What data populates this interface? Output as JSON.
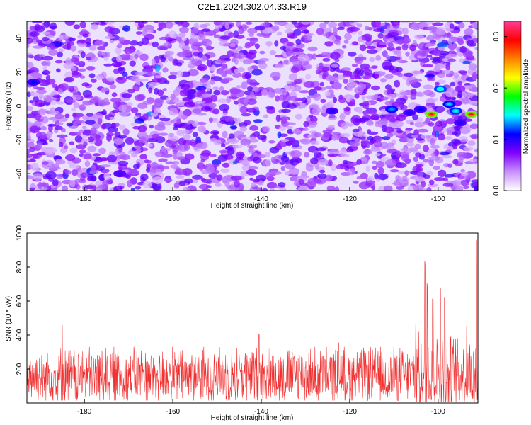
{
  "title": "C2E1.2024.302.04.33.R19",
  "chart_data": [
    {
      "type": "heatmap",
      "title": "C2E1.2024.302.04.33.R19",
      "xlabel": "Height of straight line (km)",
      "ylabel": "Frequency (Hz)",
      "xlim": [
        -193,
        -91
      ],
      "ylim": [
        -50,
        50
      ],
      "x_ticks": [
        -180,
        -160,
        -140,
        -120,
        -100
      ],
      "y_ticks": [
        -40,
        -20,
        0,
        20,
        40
      ],
      "colorbar": {
        "label": "Normalized spectral amplitude",
        "range": [
          0,
          0.33
        ],
        "ticks": [
          0.0,
          0.1,
          0.2,
          0.3
        ],
        "colors": [
          "#ffffff",
          "#c890ff",
          "#8000ff",
          "#0000ff",
          "#00ffff",
          "#00ff00",
          "#ffff00",
          "#ff8000",
          "#ff0000",
          "#ff3c96"
        ]
      },
      "background_level": 0.07,
      "hotspots": [
        {
          "x": -101.5,
          "y": -5,
          "value": 0.3
        },
        {
          "x": -92.5,
          "y": -5,
          "value": 0.3
        },
        {
          "x": -99.5,
          "y": 10,
          "value": 0.16
        },
        {
          "x": -110.5,
          "y": -2,
          "value": 0.13
        },
        {
          "x": -96,
          "y": -3,
          "value": 0.15
        },
        {
          "x": -97.5,
          "y": 1,
          "value": 0.14
        },
        {
          "x": -106.5,
          "y": -4,
          "value": 0.1
        },
        {
          "x": -104,
          "y": -2,
          "value": 0.11
        },
        {
          "x": -124,
          "y": -3,
          "value": 0.1
        },
        {
          "x": -191.5,
          "y": 14,
          "value": 0.11
        },
        {
          "x": -172,
          "y": -40,
          "value": 0.09
        },
        {
          "x": -95,
          "y": -10,
          "value": 0.1
        }
      ]
    },
    {
      "type": "line",
      "xlabel": "Height of straight line (km)",
      "ylabel": "SNR (10 * v/v)",
      "xlim": [
        -193,
        -91
      ],
      "ylim": [
        0,
        1000
      ],
      "x_ticks": [
        -180,
        -160,
        -140,
        -120,
        -100
      ],
      "y_ticks": [
        200,
        400,
        600,
        800,
        1000
      ],
      "color": "#f03030",
      "baseline_mean": 160,
      "noise_band": [
        30,
        330
      ],
      "spikes": [
        {
          "x": -185,
          "y": 470
        },
        {
          "x": -140.5,
          "y": 420
        },
        {
          "x": -122.5,
          "y": 370
        },
        {
          "x": -105,
          "y": 470
        },
        {
          "x": -103,
          "y": 840
        },
        {
          "x": -102.5,
          "y": 720
        },
        {
          "x": -101.2,
          "y": 640
        },
        {
          "x": -99.5,
          "y": 690
        },
        {
          "x": -98.5,
          "y": 640
        },
        {
          "x": -93.5,
          "y": 470
        },
        {
          "x": -91.3,
          "y": 1000
        }
      ]
    }
  ]
}
